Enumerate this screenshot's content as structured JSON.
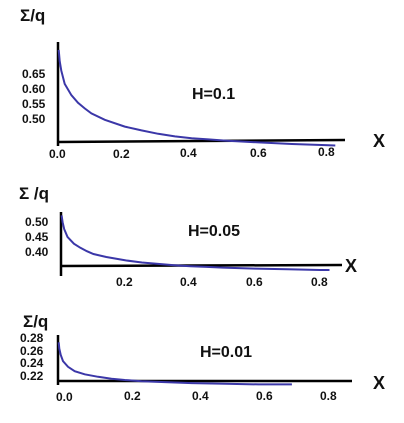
{
  "chart_data": [
    {
      "type": "line",
      "ylabel": "Σ/q",
      "xlabel": "X",
      "annotation": "H=0.1",
      "xlim": [
        0,
        0.85
      ],
      "ylim": [
        0.43,
        0.7
      ],
      "x_ticks": [
        "0.0",
        "0.2",
        "0.4",
        "0.6",
        "0.8"
      ],
      "y_ticks": [
        "0.65",
        "0.60",
        "0.55",
        "0.50"
      ],
      "line_color": "#3b37a8",
      "series": [
        {
          "x": [
            0.002,
            0.005,
            0.01,
            0.02,
            0.04,
            0.06,
            0.08,
            0.1,
            0.14,
            0.2,
            0.25,
            0.3,
            0.35,
            0.4,
            0.45,
            0.5,
            0.6,
            0.7,
            0.8,
            0.83
          ],
          "y": [
            0.695,
            0.665,
            0.64,
            0.605,
            0.575,
            0.555,
            0.54,
            0.527,
            0.51,
            0.492,
            0.482,
            0.473,
            0.466,
            0.461,
            0.458,
            0.455,
            0.45,
            0.446,
            0.443,
            0.442
          ]
        }
      ]
    },
    {
      "type": "line",
      "ylabel": "Σ /q",
      "xlabel": "X",
      "annotation": "H=0.05",
      "xlim": [
        0,
        0.85
      ],
      "ylim": [
        0.355,
        0.525
      ],
      "x_ticks": [
        "0.2",
        "0.4",
        "0.6",
        "0.8"
      ],
      "y_ticks": [
        "0.50",
        "0.45",
        "0.40"
      ],
      "line_color": "#3b37a8",
      "series": [
        {
          "x": [
            0.002,
            0.005,
            0.01,
            0.02,
            0.04,
            0.06,
            0.08,
            0.1,
            0.14,
            0.2,
            0.25,
            0.3,
            0.35,
            0.4,
            0.45,
            0.5,
            0.6,
            0.7,
            0.8,
            0.83
          ],
          "y": [
            0.515,
            0.495,
            0.475,
            0.452,
            0.432,
            0.42,
            0.41,
            0.402,
            0.393,
            0.383,
            0.377,
            0.373,
            0.369,
            0.366,
            0.364,
            0.362,
            0.359,
            0.357,
            0.355,
            0.355
          ]
        }
      ]
    },
    {
      "type": "line",
      "ylabel": "Σ/q",
      "xlabel": "X",
      "annotation": "H=0.01",
      "xlim": [
        0,
        0.85
      ],
      "ylim": [
        0.212,
        0.29
      ],
      "x_ticks": [
        "0.0",
        "0.2",
        "0.4",
        "0.6",
        "0.8"
      ],
      "y_ticks": [
        "0.28",
        "0.26",
        "0.24",
        "0.22"
      ],
      "line_color": "#3b37a8",
      "series": [
        {
          "x": [
            0.002,
            0.004,
            0.008,
            0.015,
            0.03,
            0.05,
            0.08,
            0.12,
            0.16,
            0.2,
            0.25,
            0.3,
            0.35,
            0.4,
            0.5,
            0.6,
            0.7
          ],
          "y": [
            0.28,
            0.27,
            0.26,
            0.25,
            0.241,
            0.234,
            0.229,
            0.225,
            0.222,
            0.22,
            0.218,
            0.217,
            0.216,
            0.215,
            0.214,
            0.213,
            0.213
          ]
        }
      ]
    }
  ]
}
